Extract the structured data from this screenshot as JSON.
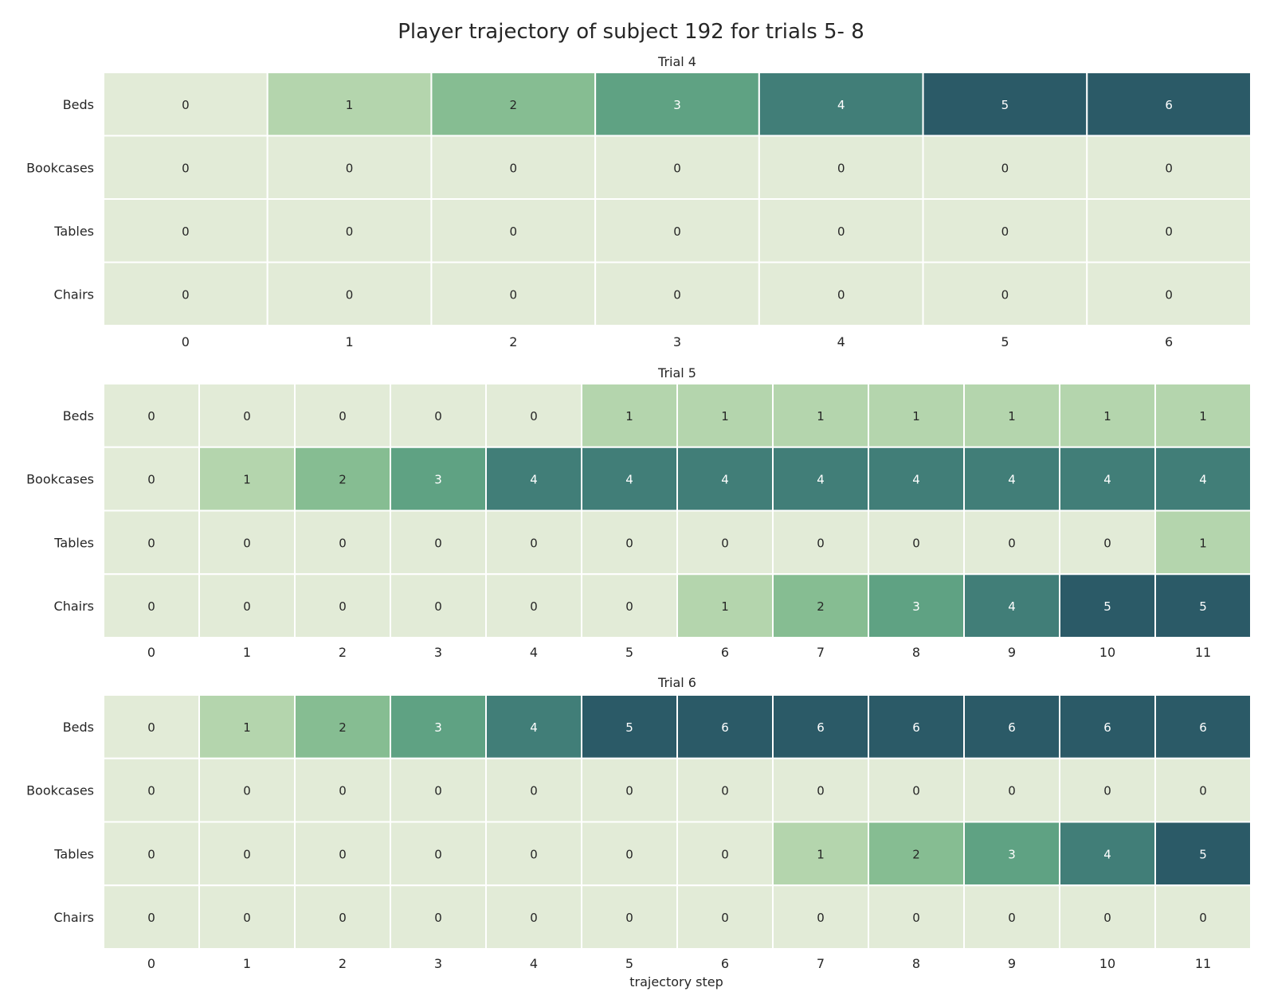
{
  "chart_data": {
    "type": "heatmap",
    "title": "Player trajectory of subject 192 for trials 5- 8",
    "xlabel": "trajectory step",
    "rows": [
      "Beds",
      "Bookcases",
      "Tables",
      "Chairs"
    ],
    "colors": {
      "0": "#e2ebd7",
      "1": "#b4d5ad",
      "2": "#86bd92",
      "3": "#5fa283",
      "4": "#417e78",
      "5": "#2b5a67",
      "6": "#2b5a67"
    },
    "panels": [
      {
        "title": "Trial 4",
        "x": [
          0,
          1,
          2,
          3,
          4,
          5,
          6
        ],
        "values": [
          [
            0,
            1,
            2,
            3,
            4,
            5,
            6
          ],
          [
            0,
            0,
            0,
            0,
            0,
            0,
            0
          ],
          [
            0,
            0,
            0,
            0,
            0,
            0,
            0
          ],
          [
            0,
            0,
            0,
            0,
            0,
            0,
            0
          ]
        ]
      },
      {
        "title": "Trial 5",
        "x": [
          0,
          1,
          2,
          3,
          4,
          5,
          6,
          7,
          8,
          9,
          10,
          11
        ],
        "values": [
          [
            0,
            0,
            0,
            0,
            0,
            1,
            1,
            1,
            1,
            1,
            1,
            1
          ],
          [
            0,
            1,
            2,
            3,
            4,
            4,
            4,
            4,
            4,
            4,
            4,
            4
          ],
          [
            0,
            0,
            0,
            0,
            0,
            0,
            0,
            0,
            0,
            0,
            0,
            1
          ],
          [
            0,
            0,
            0,
            0,
            0,
            0,
            1,
            2,
            3,
            4,
            5,
            5
          ]
        ]
      },
      {
        "title": "Trial 6",
        "x": [
          0,
          1,
          2,
          3,
          4,
          5,
          6,
          7,
          8,
          9,
          10,
          11
        ],
        "values": [
          [
            0,
            1,
            2,
            3,
            4,
            5,
            6,
            6,
            6,
            6,
            6,
            6
          ],
          [
            0,
            0,
            0,
            0,
            0,
            0,
            0,
            0,
            0,
            0,
            0,
            0
          ],
          [
            0,
            0,
            0,
            0,
            0,
            0,
            0,
            1,
            2,
            3,
            4,
            5
          ],
          [
            0,
            0,
            0,
            0,
            0,
            0,
            0,
            0,
            0,
            0,
            0,
            0
          ]
        ]
      }
    ]
  }
}
